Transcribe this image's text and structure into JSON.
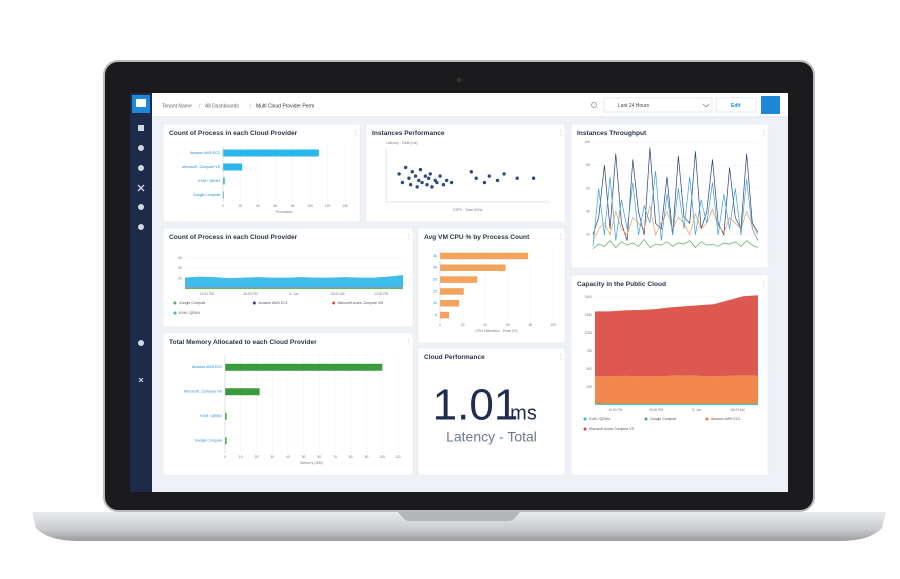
{
  "header": {
    "breadcrumb": [
      "Tenant Name",
      "All Dashboards",
      "Multi Cloud Provider Perm"
    ],
    "time_range": "Last 24 Hours",
    "edit": "Edit"
  },
  "panels": [
    {
      "title": "Count of Process in each Cloud Provider",
      "type": "hbar",
      "categories": [
        "Amazon AWS EC2",
        "Microsoft...Compute VS",
        "KVM / QEMU",
        "Google Compute"
      ],
      "values": [
        110,
        22,
        2,
        1
      ],
      "color": "#29b6e8",
      "xlim": [
        0,
        140
      ],
      "xticks": [
        0,
        20,
        40,
        60,
        80,
        100,
        120,
        140
      ],
      "x_label": "Processes"
    },
    {
      "title": "Instances Performance",
      "type": "scatter",
      "y_label": "Latency - Total (ms)",
      "x_label": "IOPS - Total (IO/s)",
      "x": [
        8,
        10,
        12,
        14,
        15,
        16,
        18,
        19,
        20,
        21,
        22,
        24,
        25,
        26,
        27,
        28,
        30,
        31,
        33,
        35,
        37,
        40,
        52,
        55,
        60,
        63,
        68,
        72,
        80,
        90
      ],
      "y": [
        1.3,
        0.9,
        1.6,
        1.1,
        0.8,
        1.4,
        1.2,
        0.7,
        1.0,
        1.5,
        0.9,
        1.2,
        0.8,
        1.1,
        1.3,
        0.7,
        1.0,
        0.9,
        1.2,
        0.8,
        1.0,
        0.9,
        1.4,
        1.1,
        0.9,
        1.2,
        1.0,
        1.3,
        1.1,
        1.1
      ],
      "color": "#2a4a7f",
      "xlim": [
        0,
        100
      ],
      "ylim": [
        0,
        2.5
      ]
    },
    {
      "title": "Instances Throughput",
      "type": "line",
      "ylim": [
        0,
        100
      ],
      "yticks": [
        20,
        40,
        60,
        80,
        100
      ],
      "series": [
        {
          "color": "#2a3f7a",
          "values": [
            20,
            35,
            80,
            25,
            90,
            30,
            15,
            85,
            40,
            20,
            95,
            30,
            25,
            70,
            20,
            88,
            35,
            30,
            92,
            25,
            40,
            85,
            30,
            20,
            78,
            35,
            25,
            90,
            30,
            22
          ]
        },
        {
          "color": "#f39c4a",
          "values": [
            15,
            25,
            30,
            20,
            40,
            25,
            20,
            35,
            30,
            25,
            45,
            20,
            30,
            40,
            25,
            35,
            30,
            20,
            38,
            25,
            30,
            42,
            28,
            22,
            35,
            30,
            25,
            40,
            28,
            20
          ]
        },
        {
          "color": "#3aa0e0",
          "values": [
            10,
            60,
            20,
            70,
            15,
            50,
            25,
            65,
            20,
            45,
            30,
            75,
            15,
            55,
            20,
            60,
            25,
            70,
            20,
            50,
            30,
            65,
            20,
            55,
            25,
            60,
            20,
            68,
            25,
            15
          ]
        },
        {
          "color": "#4caf50",
          "values": [
            8,
            12,
            10,
            15,
            9,
            14,
            11,
            13,
            10,
            16,
            9,
            12,
            11,
            14,
            10,
            13,
            12,
            15,
            9,
            14,
            11,
            12,
            10,
            13,
            12,
            14,
            10,
            15,
            11,
            9
          ]
        }
      ]
    },
    {
      "title": "Count of Process in each Cloud Provider",
      "type": "area",
      "ylim": [
        0,
        60
      ],
      "yticks": [
        20,
        40,
        60
      ],
      "x_labels": [
        "12:00 PM",
        "06:00 PM",
        "5. Jun",
        "06:00 AM",
        "12:00 PM"
      ],
      "series": [
        {
          "name": "Google Compute",
          "color": "#4caf50",
          "values": [
            2,
            2,
            2,
            2,
            2,
            2,
            2,
            2,
            2,
            2,
            2,
            2,
            2,
            2,
            2,
            2
          ]
        },
        {
          "name": "Amazon AWS EC2",
          "color": "#2a3f7a",
          "values": [
            0.5,
            0.5,
            0.5,
            0.5,
            0.5,
            0.5,
            0.5,
            0.5,
            0.5,
            0.5,
            0.5,
            0.5,
            0.5,
            0.5,
            0.5,
            0.5
          ]
        },
        {
          "name": "Microsoft Azure Compute VM",
          "color": "#e84c3d",
          "values": [
            0.5,
            0.5,
            0.5,
            0.5,
            0.5,
            0.5,
            0.5,
            0.5,
            0.5,
            0.5,
            0.5,
            0.5,
            0.5,
            0.5,
            0.5,
            0.5
          ]
        },
        {
          "name": "KVM / QEMU",
          "color": "#29b6e8",
          "values": [
            19,
            21,
            20,
            18,
            19,
            20,
            19,
            19,
            20,
            19,
            19,
            20,
            19,
            19,
            21,
            24
          ]
        }
      ]
    },
    {
      "title": "Avg VM CPU % by Process Count",
      "type": "hbar",
      "categories": [
        "40",
        "30",
        "20",
        "15",
        "10",
        "5"
      ],
      "values": [
        78,
        58,
        33,
        21,
        17,
        8
      ],
      "color": "#f5a25d",
      "xlim": [
        0,
        100
      ],
      "xticks": [
        0,
        20,
        40,
        60,
        80,
        100
      ],
      "x_label": "CPU Utilization - Peak (%)"
    },
    {
      "title": "Capacity in the Public Cloud",
      "type": "area",
      "ylim": [
        0,
        1500
      ],
      "yticks": [
        250,
        500,
        750,
        1000,
        1250,
        1500
      ],
      "x_labels": [
        "12:00 PM",
        "06:00 PM",
        "5. Jun",
        "06:00 AM"
      ],
      "series": [
        {
          "name": "KVM / QEMU",
          "color": "#29b6e8",
          "values": [
            10,
            10,
            10,
            10,
            10,
            10,
            10,
            10,
            10,
            10,
            10,
            10
          ]
        },
        {
          "name": "Google Compute",
          "color": "#4caf50",
          "values": [
            10,
            10,
            10,
            10,
            10,
            10,
            10,
            10,
            10,
            10,
            10,
            10
          ]
        },
        {
          "name": "Amazon AWS EC2",
          "color": "#f07a3a",
          "values": [
            380,
            380,
            385,
            380,
            380,
            385,
            390,
            385,
            380,
            385,
            390,
            385
          ]
        },
        {
          "name": "Microsoft Azure Compute VS",
          "color": "#d9463b",
          "values": [
            900,
            900,
            910,
            920,
            930,
            950,
            960,
            980,
            1000,
            1050,
            1100,
            1120
          ]
        }
      ]
    },
    {
      "title": "Total Memory Allocated to each Cloud Provider",
      "type": "hbar",
      "categories": [
        "Amazon AWS EC2",
        "Microsoft...Compute VS",
        "KVM / QEMU",
        "Google Compute"
      ],
      "values": [
        100,
        22,
        1,
        1
      ],
      "color": "#3a9a3e",
      "xlim": [
        0,
        110
      ],
      "xticks": [
        0,
        10,
        20,
        30,
        40,
        50,
        60,
        70,
        80,
        90,
        100,
        110
      ],
      "x_label": "Memory (GiB)"
    },
    {
      "title": "Cloud Performance",
      "type": "stat",
      "value": 1.01,
      "unit": "ms",
      "label": "Latency - Total"
    }
  ]
}
